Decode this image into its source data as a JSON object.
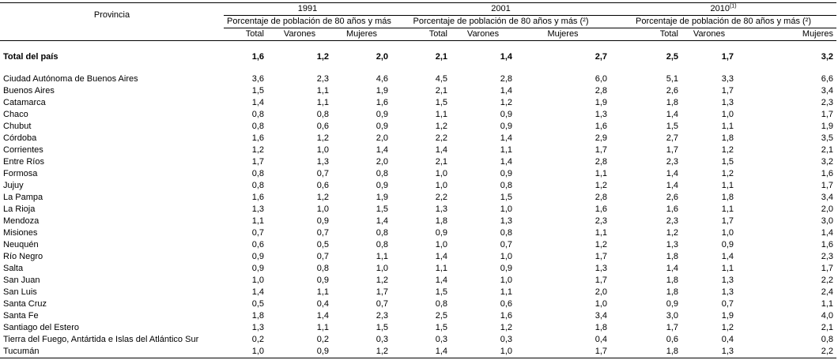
{
  "header": {
    "province_label": "Provincia",
    "years": [
      {
        "label": "1991",
        "note": ""
      },
      {
        "label": "2001",
        "note": ""
      },
      {
        "label": "2010",
        "note": "(1)"
      }
    ],
    "indicator_label": "Porcentaje de población de 80 años y más (²)",
    "sub_columns": [
      "Total",
      "Varones",
      "Mujeres"
    ]
  },
  "total": {
    "name": "Total del país",
    "values": [
      "1,6",
      "1,2",
      "2,0",
      "2,1",
      "1,4",
      "2,7",
      "2,5",
      "1,7",
      "3,2"
    ]
  },
  "rows": [
    {
      "name": "Ciudad Autónoma de Buenos Aires",
      "values": [
        "3,6",
        "2,3",
        "4,6",
        "4,5",
        "2,8",
        "6,0",
        "5,1",
        "3,3",
        "6,6"
      ]
    },
    {
      "name": "Buenos Aires",
      "values": [
        "1,5",
        "1,1",
        "1,9",
        "2,1",
        "1,4",
        "2,8",
        "2,6",
        "1,7",
        "3,4"
      ]
    },
    {
      "name": "Catamarca",
      "values": [
        "1,4",
        "1,1",
        "1,6",
        "1,5",
        "1,2",
        "1,9",
        "1,8",
        "1,3",
        "2,3"
      ]
    },
    {
      "name": "Chaco",
      "values": [
        "0,8",
        "0,8",
        "0,9",
        "1,1",
        "0,9",
        "1,3",
        "1,4",
        "1,0",
        "1,7"
      ]
    },
    {
      "name": "Chubut",
      "values": [
        "0,8",
        "0,6",
        "0,9",
        "1,2",
        "0,9",
        "1,6",
        "1,5",
        "1,1",
        "1,9"
      ]
    },
    {
      "name": "Córdoba",
      "values": [
        "1,6",
        "1,2",
        "2,0",
        "2,2",
        "1,4",
        "2,9",
        "2,7",
        "1,8",
        "3,5"
      ]
    },
    {
      "name": "Corrientes",
      "values": [
        "1,2",
        "1,0",
        "1,4",
        "1,4",
        "1,1",
        "1,7",
        "1,7",
        "1,2",
        "2,1"
      ]
    },
    {
      "name": "Entre Ríos",
      "values": [
        "1,7",
        "1,3",
        "2,0",
        "2,1",
        "1,4",
        "2,8",
        "2,3",
        "1,5",
        "3,2"
      ]
    },
    {
      "name": "Formosa",
      "values": [
        "0,8",
        "0,7",
        "0,8",
        "1,0",
        "0,9",
        "1,1",
        "1,4",
        "1,2",
        "1,6"
      ]
    },
    {
      "name": "Jujuy",
      "values": [
        "0,8",
        "0,6",
        "0,9",
        "1,0",
        "0,8",
        "1,2",
        "1,4",
        "1,1",
        "1,7"
      ]
    },
    {
      "name": "La Pampa",
      "values": [
        "1,6",
        "1,2",
        "1,9",
        "2,2",
        "1,5",
        "2,8",
        "2,6",
        "1,8",
        "3,4"
      ]
    },
    {
      "name": "La Rioja",
      "values": [
        "1,3",
        "1,0",
        "1,5",
        "1,3",
        "1,0",
        "1,6",
        "1,6",
        "1,1",
        "2,0"
      ]
    },
    {
      "name": "Mendoza",
      "values": [
        "1,1",
        "0,9",
        "1,4",
        "1,8",
        "1,3",
        "2,3",
        "2,3",
        "1,7",
        "3,0"
      ]
    },
    {
      "name": "Misiones",
      "values": [
        "0,7",
        "0,7",
        "0,8",
        "0,9",
        "0,8",
        "1,1",
        "1,2",
        "1,0",
        "1,4"
      ]
    },
    {
      "name": "Neuquén",
      "values": [
        "0,6",
        "0,5",
        "0,8",
        "1,0",
        "0,7",
        "1,2",
        "1,3",
        "0,9",
        "1,6"
      ]
    },
    {
      "name": "Río Negro",
      "values": [
        "0,9",
        "0,7",
        "1,1",
        "1,4",
        "1,0",
        "1,7",
        "1,8",
        "1,4",
        "2,3"
      ]
    },
    {
      "name": "Salta",
      "values": [
        "0,9",
        "0,8",
        "1,0",
        "1,1",
        "0,9",
        "1,3",
        "1,4",
        "1,1",
        "1,7"
      ]
    },
    {
      "name": "San Juan",
      "values": [
        "1,0",
        "0,9",
        "1,2",
        "1,4",
        "1,0",
        "1,7",
        "1,8",
        "1,3",
        "2,2"
      ]
    },
    {
      "name": "San Luis",
      "values": [
        "1,4",
        "1,1",
        "1,7",
        "1,5",
        "1,1",
        "2,0",
        "1,8",
        "1,3",
        "2,4"
      ]
    },
    {
      "name": "Santa Cruz",
      "values": [
        "0,5",
        "0,4",
        "0,7",
        "0,8",
        "0,6",
        "1,0",
        "0,9",
        "0,7",
        "1,1"
      ]
    },
    {
      "name": "Santa Fe",
      "values": [
        "1,8",
        "1,4",
        "2,3",
        "2,5",
        "1,6",
        "3,4",
        "3,0",
        "1,9",
        "4,0"
      ]
    },
    {
      "name": "Santiago del Estero",
      "values": [
        "1,3",
        "1,1",
        "1,5",
        "1,5",
        "1,2",
        "1,8",
        "1,7",
        "1,2",
        "2,1"
      ]
    },
    {
      "name": "Tierra del Fuego, Antártida e Islas del Atlántico Sur",
      "values": [
        "0,2",
        "0,2",
        "0,3",
        "0,3",
        "0,3",
        "0,4",
        "0,6",
        "0,4",
        "0,8"
      ]
    },
    {
      "name": "Tucumán",
      "values": [
        "1,0",
        "0,9",
        "1,2",
        "1,4",
        "1,0",
        "1,7",
        "1,8",
        "1,3",
        "2,2"
      ]
    }
  ]
}
